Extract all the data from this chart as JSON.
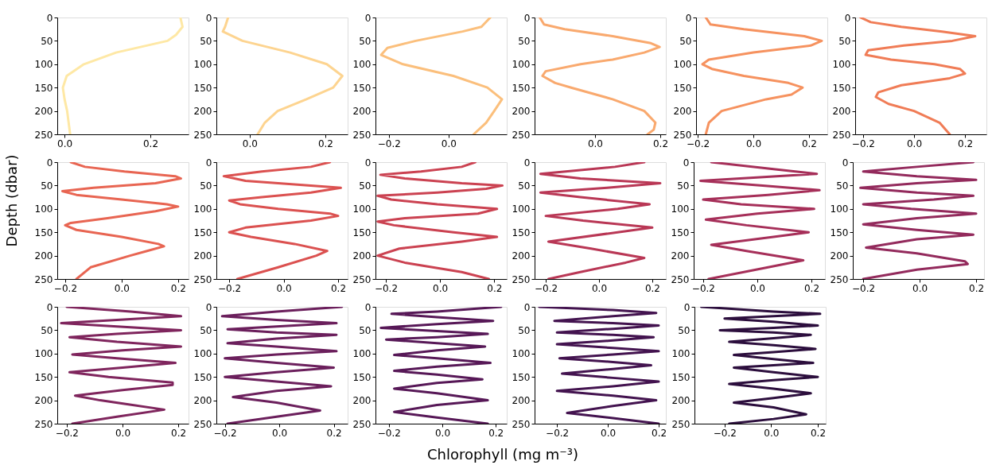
{
  "chart_data": [
    {
      "type": "line",
      "xlim": [
        -0.017,
        0.289
      ],
      "xticks": [
        {
          "value": 0,
          "label": "0.0"
        },
        {
          "value": 0.2,
          "label": "0.2"
        }
      ],
      "ylim": [
        250,
        0
      ],
      "yticks": [
        0,
        50,
        100,
        150,
        200,
        250
      ],
      "series": [
        {
          "color": "#fee8a5",
          "x": [
            0.27,
            0.275,
            0.26,
            0.24,
            0.12,
            0.045,
            0.005,
            -0.004,
            0,
            0.006,
            0.013
          ],
          "values": [
            0,
            20,
            37,
            50,
            75,
            100,
            125,
            150,
            175,
            200,
            250
          ]
        }
      ]
    },
    {
      "type": "line",
      "xlim": [
        -0.088,
        0.259
      ],
      "xticks": [
        {
          "value": 0,
          "label": "0.0"
        },
        {
          "value": 0.2,
          "label": "0.2"
        }
      ],
      "ylim": [
        250,
        0
      ],
      "yticks": [
        0,
        50,
        100,
        150,
        200,
        250
      ],
      "series": [
        {
          "color": "#fdd490",
          "x": [
            -0.057,
            -0.065,
            -0.071,
            -0.019,
            0.107,
            0.204,
            0.245,
            0.221,
            0.15,
            0.074,
            0.04,
            0.021
          ],
          "values": [
            0,
            20,
            30,
            50,
            75,
            100,
            125,
            150,
            175,
            200,
            225,
            250
          ]
        }
      ]
    },
    {
      "type": "line",
      "xlim": [
        -0.245,
        0.195
      ],
      "xticks": [
        {
          "value": -0.2,
          "label": "−0.2"
        },
        {
          "value": 0,
          "label": "0.0"
        }
      ],
      "ylim": [
        250,
        0
      ],
      "yticks": [
        0,
        50,
        100,
        150,
        200,
        250
      ],
      "series": [
        {
          "color": "#fbbf7c",
          "x": [
            0.14,
            0.11,
            0.047,
            -0.11,
            -0.205,
            -0.226,
            -0.153,
            0.016,
            0.13,
            0.179,
            0.153,
            0.126,
            0.084
          ],
          "values": [
            0,
            20,
            30,
            50,
            65,
            80,
            100,
            125,
            150,
            175,
            200,
            225,
            250
          ]
        }
      ]
    },
    {
      "type": "line",
      "xlim": [
        -0.185,
        0.217
      ],
      "xticks": [
        {
          "value": 0,
          "label": "0.0"
        },
        {
          "value": 0.2,
          "label": "0.2"
        }
      ],
      "ylim": [
        250,
        0
      ],
      "yticks": [
        0,
        50,
        100,
        150,
        200,
        250
      ],
      "series": [
        {
          "color": "#f9a96e",
          "x": [
            -0.169,
            -0.156,
            -0.093,
            0.054,
            0.171,
            0.198,
            0.151,
            0.054,
            -0.044,
            -0.151,
            -0.161,
            -0.122,
            -0.073,
            0.054,
            0.151,
            0.185,
            0.18,
            0.161
          ],
          "values": [
            0,
            15,
            25,
            40,
            55,
            63,
            75,
            90,
            100,
            115,
            125,
            140,
            150,
            175,
            200,
            225,
            240,
            250
          ]
        }
      ]
    },
    {
      "type": "line",
      "xlim": [
        -0.206,
        0.266
      ],
      "xticks": [
        {
          "value": -0.2,
          "label": "−0.2"
        },
        {
          "value": 0,
          "label": "0.0"
        },
        {
          "value": 0.2,
          "label": "0.2"
        }
      ],
      "ylim": [
        250,
        0
      ],
      "yticks": [
        0,
        50,
        100,
        150,
        200,
        250
      ],
      "series": [
        {
          "color": "#f6925f",
          "x": [
            -0.171,
            -0.154,
            -0.034,
            0.183,
            0.246,
            0.206,
            0,
            -0.16,
            -0.183,
            -0.149,
            -0.034,
            0.126,
            0.177,
            0.137,
            0.046,
            -0.114,
            -0.16,
            -0.171
          ],
          "values": [
            0,
            15,
            25,
            40,
            50,
            60,
            75,
            90,
            100,
            110,
            125,
            140,
            150,
            165,
            175,
            200,
            225,
            250
          ]
        }
      ]
    },
    {
      "type": "line",
      "xlim": [
        -0.231,
        0.284
      ],
      "xticks": [
        {
          "value": -0.2,
          "label": "−0.2"
        },
        {
          "value": 0,
          "label": "0.0"
        },
        {
          "value": 0.2,
          "label": "0.2"
        }
      ],
      "ylim": [
        250,
        0
      ],
      "yticks": [
        0,
        50,
        100,
        150,
        200,
        250
      ],
      "series": [
        {
          "color": "#f07c56",
          "x": [
            -0.21,
            -0.17,
            -0.05,
            0.11,
            0.24,
            0.15,
            -0.04,
            -0.18,
            -0.19,
            -0.09,
            0.08,
            0.18,
            0.2,
            0.14,
            -0.05,
            -0.14,
            -0.15,
            -0.1,
            0,
            0.1,
            0.14
          ],
          "values": [
            0,
            10,
            20,
            30,
            40,
            50,
            60,
            70,
            80,
            90,
            100,
            110,
            120,
            130,
            145,
            160,
            170,
            185,
            200,
            225,
            250
          ]
        }
      ]
    },
    {
      "type": "line",
      "ylabel": "Depth (dbar)",
      "xlim": [
        -0.228,
        0.237
      ],
      "xticks": [
        {
          "value": -0.2,
          "label": "−0.2"
        },
        {
          "value": 0,
          "label": "0.0"
        },
        {
          "value": 0.2,
          "label": "0.2"
        }
      ],
      "ylim": [
        250,
        0
      ],
      "yticks": [
        0,
        50,
        100,
        150,
        200,
        250
      ],
      "series": [
        {
          "color": "#e86552",
          "x": [
            -0.18,
            -0.13,
            0.01,
            0.19,
            0.21,
            0.12,
            -0.1,
            -0.21,
            -0.16,
            0,
            0.16,
            0.2,
            0.12,
            -0.05,
            -0.18,
            -0.2,
            -0.16,
            0,
            0.13,
            0.15,
            0.09,
            0.03,
            -0.11,
            -0.16
          ],
          "values": [
            0,
            10,
            20,
            30,
            35,
            45,
            55,
            62,
            70,
            80,
            90,
            95,
            105,
            120,
            130,
            135,
            145,
            160,
            175,
            180,
            190,
            200,
            225,
            250
          ]
        }
      ]
    },
    {
      "type": "line",
      "xlim": [
        -0.247,
        0.235
      ],
      "xticks": [
        {
          "value": -0.2,
          "label": "−0.2"
        },
        {
          "value": 0,
          "label": "0.0"
        },
        {
          "value": 0.2,
          "label": "0.2"
        }
      ],
      "ylim": [
        250,
        0
      ],
      "yticks": [
        0,
        50,
        100,
        150,
        200,
        250
      ],
      "series": [
        {
          "color": "#db5150",
          "x": [
            0.17,
            0.1,
            -0.08,
            -0.22,
            -0.14,
            0.1,
            0.21,
            0.1,
            -0.08,
            -0.2,
            -0.16,
            -0.02,
            0.17,
            0.2,
            0.1,
            -0.14,
            -0.2,
            -0.12,
            0.04,
            0.16,
            0.12,
            -0.02,
            -0.17
          ],
          "values": [
            0,
            10,
            20,
            30,
            40,
            50,
            55,
            65,
            75,
            82,
            90,
            100,
            110,
            115,
            125,
            140,
            150,
            160,
            175,
            190,
            200,
            225,
            250
          ]
        }
      ]
    },
    {
      "type": "line",
      "xlim": [
        -0.238,
        0.246
      ],
      "xticks": [
        {
          "value": -0.2,
          "label": "−0.2"
        },
        {
          "value": 0,
          "label": "0.0"
        },
        {
          "value": 0.2,
          "label": "0.2"
        }
      ],
      "ylim": [
        250,
        0
      ],
      "yticks": [
        0,
        50,
        100,
        150,
        200,
        250
      ],
      "series": [
        {
          "color": "#cb4251",
          "x": [
            0.13,
            0.08,
            -0.07,
            -0.22,
            -0.13,
            0.08,
            0.23,
            0.17,
            -0.01,
            -0.23,
            -0.18,
            -0.01,
            0.21,
            0.14,
            -0.13,
            -0.23,
            -0.17,
            0.05,
            0.21,
            0.08,
            -0.15,
            -0.23,
            -0.13,
            0.08,
            0.18
          ],
          "values": [
            0,
            10,
            20,
            27,
            35,
            45,
            50,
            57,
            65,
            72,
            80,
            90,
            100,
            110,
            120,
            127,
            135,
            150,
            160,
            170,
            185,
            200,
            215,
            235,
            250
          ]
        }
      ]
    },
    {
      "type": "line",
      "xlim": [
        -0.242,
        0.251
      ],
      "xticks": [
        {
          "value": -0.2,
          "label": "−0.2"
        },
        {
          "value": 0,
          "label": "0.0"
        },
        {
          "value": 0.2,
          "label": "0.2"
        }
      ],
      "ylim": [
        250,
        0
      ],
      "yticks": [
        0,
        50,
        100,
        150,
        200,
        250
      ],
      "series": [
        {
          "color": "#b93755",
          "x": [
            0.17,
            0.06,
            -0.22,
            -0.07,
            0.23,
            0.03,
            -0.22,
            -0.07,
            0.19,
            0.07,
            -0.2,
            -0.06,
            0.2,
            0.07,
            -0.19,
            -0.03,
            0.17,
            0.1,
            -0.07,
            -0.19
          ],
          "values": [
            0,
            10,
            25,
            35,
            45,
            55,
            65,
            75,
            90,
            100,
            115,
            125,
            140,
            150,
            170,
            185,
            205,
            215,
            235,
            250
          ]
        }
      ]
    },
    {
      "type": "line",
      "xlim": [
        -0.235,
        0.25
      ],
      "xticks": [
        {
          "value": -0.2,
          "label": "−0.2"
        },
        {
          "value": 0,
          "label": "0.0"
        },
        {
          "value": 0.2,
          "label": "0.2"
        }
      ],
      "ylim": [
        250,
        0
      ],
      "yticks": [
        0,
        50,
        100,
        150,
        200,
        250
      ],
      "series": [
        {
          "color": "#a62f59",
          "x": [
            -0.17,
            0.06,
            0.22,
            -0.21,
            0.02,
            0.23,
            0.04,
            -0.2,
            -0.06,
            0.21,
            0,
            -0.19,
            -0.04,
            0.19,
            0.06,
            -0.17,
            -0.04,
            0.17,
            0.04,
            -0.18
          ],
          "values": [
            0,
            15,
            25,
            40,
            50,
            60,
            70,
            80,
            90,
            100,
            110,
            123,
            135,
            150,
            160,
            177,
            190,
            210,
            225,
            250
          ]
        }
      ]
    },
    {
      "type": "line",
      "xlim": [
        -0.237,
        0.228
      ],
      "xticks": [
        {
          "value": -0.2,
          "label": "−0.2"
        },
        {
          "value": 0,
          "label": "0.0"
        },
        {
          "value": 0.2,
          "label": "0.2"
        }
      ],
      "ylim": [
        250,
        0
      ],
      "yticks": [
        0,
        50,
        100,
        150,
        200,
        250
      ],
      "series": [
        {
          "color": "#932a5c",
          "x": [
            0.19,
            -0.01,
            -0.2,
            -0.01,
            0.2,
            -0.01,
            -0.21,
            -0.01,
            0.19,
            0.05,
            -0.2,
            -0.03,
            0.2,
            -0.01,
            -0.2,
            -0.01,
            0.19,
            -0.01,
            -0.19,
            -0.01,
            0.16,
            0.17,
            -0.01,
            -0.2
          ],
          "values": [
            0,
            10,
            20,
            30,
            38,
            45,
            55,
            65,
            72,
            80,
            90,
            100,
            110,
            120,
            133,
            145,
            155,
            165,
            183,
            195,
            212,
            218,
            230,
            250
          ]
        }
      ]
    },
    {
      "type": "line",
      "xlim": [
        -0.234,
        0.237
      ],
      "xticks": [
        {
          "value": -0.2,
          "label": "−0.2"
        },
        {
          "value": 0,
          "label": "0.0"
        },
        {
          "value": 0.2,
          "label": "0.2"
        }
      ],
      "ylim": [
        250,
        0
      ],
      "yticks": [
        0,
        50,
        100,
        150,
        200,
        250
      ],
      "series": [
        {
          "color": "#7f255d",
          "x": [
            -0.2,
            0.03,
            0.21,
            -0.02,
            -0.22,
            -0.02,
            0.21,
            -0.02,
            -0.19,
            -0.02,
            0.21,
            0,
            -0.18,
            -0.02,
            0.19,
            0,
            -0.19,
            -0.05,
            0.18,
            0.18,
            0,
            -0.17,
            -0.08,
            0.15,
            -0.02,
            -0.18
          ],
          "values": [
            0,
            10,
            20,
            28,
            35,
            42,
            50,
            58,
            65,
            75,
            85,
            93,
            102,
            110,
            120,
            130,
            140,
            150,
            162,
            167,
            178,
            190,
            200,
            220,
            235,
            250
          ]
        }
      ]
    },
    {
      "type": "line",
      "xlim": [
        -0.231,
        0.251
      ],
      "xticks": [
        {
          "value": -0.2,
          "label": "−0.2"
        },
        {
          "value": 0,
          "label": "0.0"
        },
        {
          "value": 0.2,
          "label": "0.2"
        }
      ],
      "ylim": [
        250,
        0
      ],
      "yticks": [
        0,
        50,
        100,
        150,
        200,
        250
      ],
      "series": [
        {
          "color": "#6b1f5c",
          "x": [
            0.23,
            -0.01,
            -0.21,
            -0.01,
            0.21,
            -0.01,
            -0.19,
            -0.01,
            0.21,
            -0.01,
            -0.19,
            -0.01,
            0.21,
            -0.01,
            -0.2,
            -0.01,
            0.2,
            -0.01,
            -0.2,
            -0.01,
            0.19,
            -0.01,
            -0.17,
            -0.01,
            0.15,
            -0.01,
            -0.19
          ],
          "values": [
            0,
            10,
            20,
            28,
            35,
            42,
            48,
            55,
            60,
            68,
            78,
            85,
            95,
            102,
            110,
            120,
            130,
            140,
            150,
            160,
            170,
            180,
            193,
            205,
            222,
            235,
            250
          ]
        }
      ]
    },
    {
      "type": "line",
      "xlabel": "Chlorophyll (mg m⁻³)",
      "xlim": [
        -0.25,
        0.241
      ],
      "xticks": [
        {
          "value": -0.2,
          "label": "−0.2"
        },
        {
          "value": 0,
          "label": "0.0"
        },
        {
          "value": 0.2,
          "label": "0.2"
        }
      ],
      "ylim": [
        250,
        0
      ],
      "yticks": [
        0,
        50,
        100,
        150,
        200,
        250
      ],
      "series": [
        {
          "color": "#571857",
          "x": [
            0.22,
            -0.02,
            -0.19,
            -0.02,
            0.19,
            -0.02,
            -0.23,
            -0.02,
            0.17,
            -0.02,
            -0.21,
            -0.02,
            0.16,
            -0.02,
            -0.18,
            -0.02,
            0.18,
            -0.02,
            -0.18,
            -0.02,
            0.15,
            -0.02,
            -0.18,
            -0.02,
            0.17,
            -0.02,
            -0.18,
            -0.02,
            0.17
          ],
          "values": [
            0,
            10,
            15,
            22,
            30,
            37,
            45,
            52,
            58,
            65,
            70,
            78,
            85,
            93,
            103,
            110,
            120,
            128,
            137,
            145,
            155,
            163,
            175,
            185,
            200,
            210,
            225,
            237,
            250
          ]
        }
      ]
    },
    {
      "type": "line",
      "xlim": [
        -0.288,
        0.228
      ],
      "xticks": [
        {
          "value": -0.2,
          "label": "−0.2"
        },
        {
          "value": 0,
          "label": "0.0"
        },
        {
          "value": 0.2,
          "label": "0.2"
        }
      ],
      "ylim": [
        250,
        0
      ],
      "yticks": [
        0,
        50,
        100,
        150,
        200,
        250
      ],
      "series": [
        {
          "color": "#43134f",
          "x": [
            -0.27,
            0.02,
            0.19,
            0.02,
            -0.21,
            0.02,
            0.2,
            0.02,
            -0.2,
            0.02,
            0.18,
            0.02,
            -0.2,
            0.02,
            0.2,
            0.02,
            -0.19,
            0.02,
            0.17,
            0.02,
            -0.18,
            0.02,
            0.2,
            0.02,
            -0.2,
            0.02,
            0.19,
            0.02,
            -0.16,
            0.02,
            0.2
          ],
          "values": [
            0,
            7,
            13,
            20,
            30,
            35,
            40,
            47,
            55,
            60,
            65,
            72,
            80,
            88,
            95,
            102,
            110,
            118,
            125,
            133,
            143,
            152,
            160,
            170,
            180,
            190,
            200,
            212,
            227,
            238,
            250
          ]
        }
      ]
    },
    {
      "type": "line",
      "xlim": [
        -0.329,
        0.234
      ],
      "xticks": [
        {
          "value": -0.2,
          "label": "−0.2"
        },
        {
          "value": 0,
          "label": "0.0"
        },
        {
          "value": 0.2,
          "label": "0.2"
        }
      ],
      "ylim": [
        250,
        0
      ],
      "yticks": [
        0,
        50,
        100,
        150,
        200,
        250
      ],
      "series": [
        {
          "color": "#2c0e3d",
          "x": [
            -0.3,
            0.01,
            0.21,
            0.01,
            -0.2,
            0.01,
            0.2,
            0.01,
            -0.22,
            0.01,
            0.17,
            0.01,
            -0.18,
            0.01,
            0.19,
            0.01,
            -0.16,
            0.01,
            0.18,
            0.01,
            -0.16,
            0.01,
            0.2,
            0.01,
            -0.18,
            0.01,
            0.17,
            0.01,
            -0.16,
            0.01,
            0.15,
            0.01,
            -0.18
          ],
          "values": [
            0,
            10,
            15,
            20,
            25,
            32,
            40,
            45,
            50,
            55,
            60,
            67,
            75,
            82,
            90,
            97,
            103,
            112,
            120,
            125,
            130,
            140,
            150,
            157,
            165,
            175,
            185,
            195,
            205,
            215,
            230,
            240,
            250
          ]
        }
      ]
    }
  ]
}
